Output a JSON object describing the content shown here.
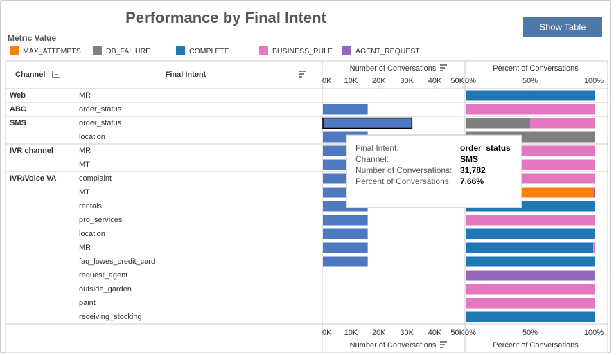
{
  "header": {
    "title": "Performance by Final Intent",
    "button": "Show Table",
    "legend_title": "Metric Value"
  },
  "table": {
    "columns": [
      "Channel",
      "Final Intent"
    ],
    "rows": [
      [
        "Web",
        "MR"
      ],
      [
        "ABC",
        "order_status"
      ],
      [
        "SMS",
        "order_status"
      ],
      [
        null,
        "location"
      ],
      [
        "IVR channel",
        "MR"
      ],
      [
        null,
        "MT"
      ],
      [
        "IVR/Voice VA",
        "complaint"
      ],
      [
        null,
        "MT"
      ],
      [
        null,
        "rentals"
      ],
      [
        null,
        "pro_services"
      ],
      [
        null,
        "location"
      ],
      [
        null,
        "MR"
      ],
      [
        null,
        "faq_lowes_credit_card"
      ],
      [
        null,
        "request_agent"
      ],
      [
        null,
        "outside_garden"
      ],
      [
        null,
        "paint"
      ],
      [
        null,
        "receiving_stocking"
      ]
    ]
  },
  "chart_data": [
    {
      "type": "bar",
      "axis_label": "Number of Conversations",
      "color": "#4e79c0",
      "xlim": [
        0,
        50000
      ],
      "xticks": [
        {
          "value": 0,
          "label": "0K"
        },
        {
          "value": 10000,
          "label": "10K"
        },
        {
          "value": 20000,
          "label": "20K"
        },
        {
          "value": 30000,
          "label": "30K"
        },
        {
          "value": 40000,
          "label": "40K"
        },
        {
          "value": 50000,
          "label": "50K"
        }
      ],
      "values": [
        null,
        16000,
        31782,
        16000,
        16000,
        16000,
        16000,
        16000,
        16000,
        16000,
        16000,
        16000,
        16000,
        null,
        null,
        null,
        null
      ],
      "selected": 2
    },
    {
      "type": "stacked_bar",
      "axis_label": "Percent of Conversations",
      "xlim": [
        0,
        100
      ],
      "xticks": [
        {
          "value": 0,
          "label": "0%"
        },
        {
          "value": 50,
          "label": "50%"
        },
        {
          "value": 100,
          "label": "100%"
        }
      ],
      "series": [
        {
          "name": "MAX_ATTEMPTS",
          "color": "#ff7f0e",
          "values": [
            null,
            null,
            null,
            null,
            null,
            null,
            null,
            99,
            null,
            null,
            null,
            null,
            null,
            null,
            null,
            null,
            null
          ]
        },
        {
          "name": "DB_FAILURE",
          "color": "#7f7f7f",
          "values": [
            null,
            null,
            50,
            100,
            null,
            null,
            null,
            null,
            null,
            null,
            null,
            null,
            null,
            null,
            null,
            null,
            null
          ]
        },
        {
          "name": "COMPLETE",
          "color": "#1f77b4",
          "values": [
            100,
            null,
            null,
            null,
            null,
            null,
            null,
            null,
            100,
            null,
            100,
            99,
            100,
            null,
            null,
            null,
            100
          ]
        },
        {
          "name": "BUSINESS_RULE",
          "color": "#e377c2",
          "values": [
            null,
            100,
            50,
            null,
            100,
            100,
            100,
            null,
            null,
            100,
            null,
            1,
            null,
            null,
            100,
            100,
            null
          ]
        },
        {
          "name": "AGENT_REQUEST",
          "color": "#9467bd",
          "values": [
            null,
            null,
            null,
            null,
            null,
            null,
            null,
            1,
            null,
            null,
            null,
            null,
            null,
            100,
            null,
            null,
            null
          ]
        }
      ]
    }
  ],
  "tooltip": {
    "rows": [
      [
        "Final Intent:",
        "order_status"
      ],
      [
        "Channel:",
        "SMS"
      ],
      [
        "Number of Conversations:",
        "31,782"
      ],
      [
        "Percent of Conversations:",
        "7.66%"
      ]
    ]
  }
}
